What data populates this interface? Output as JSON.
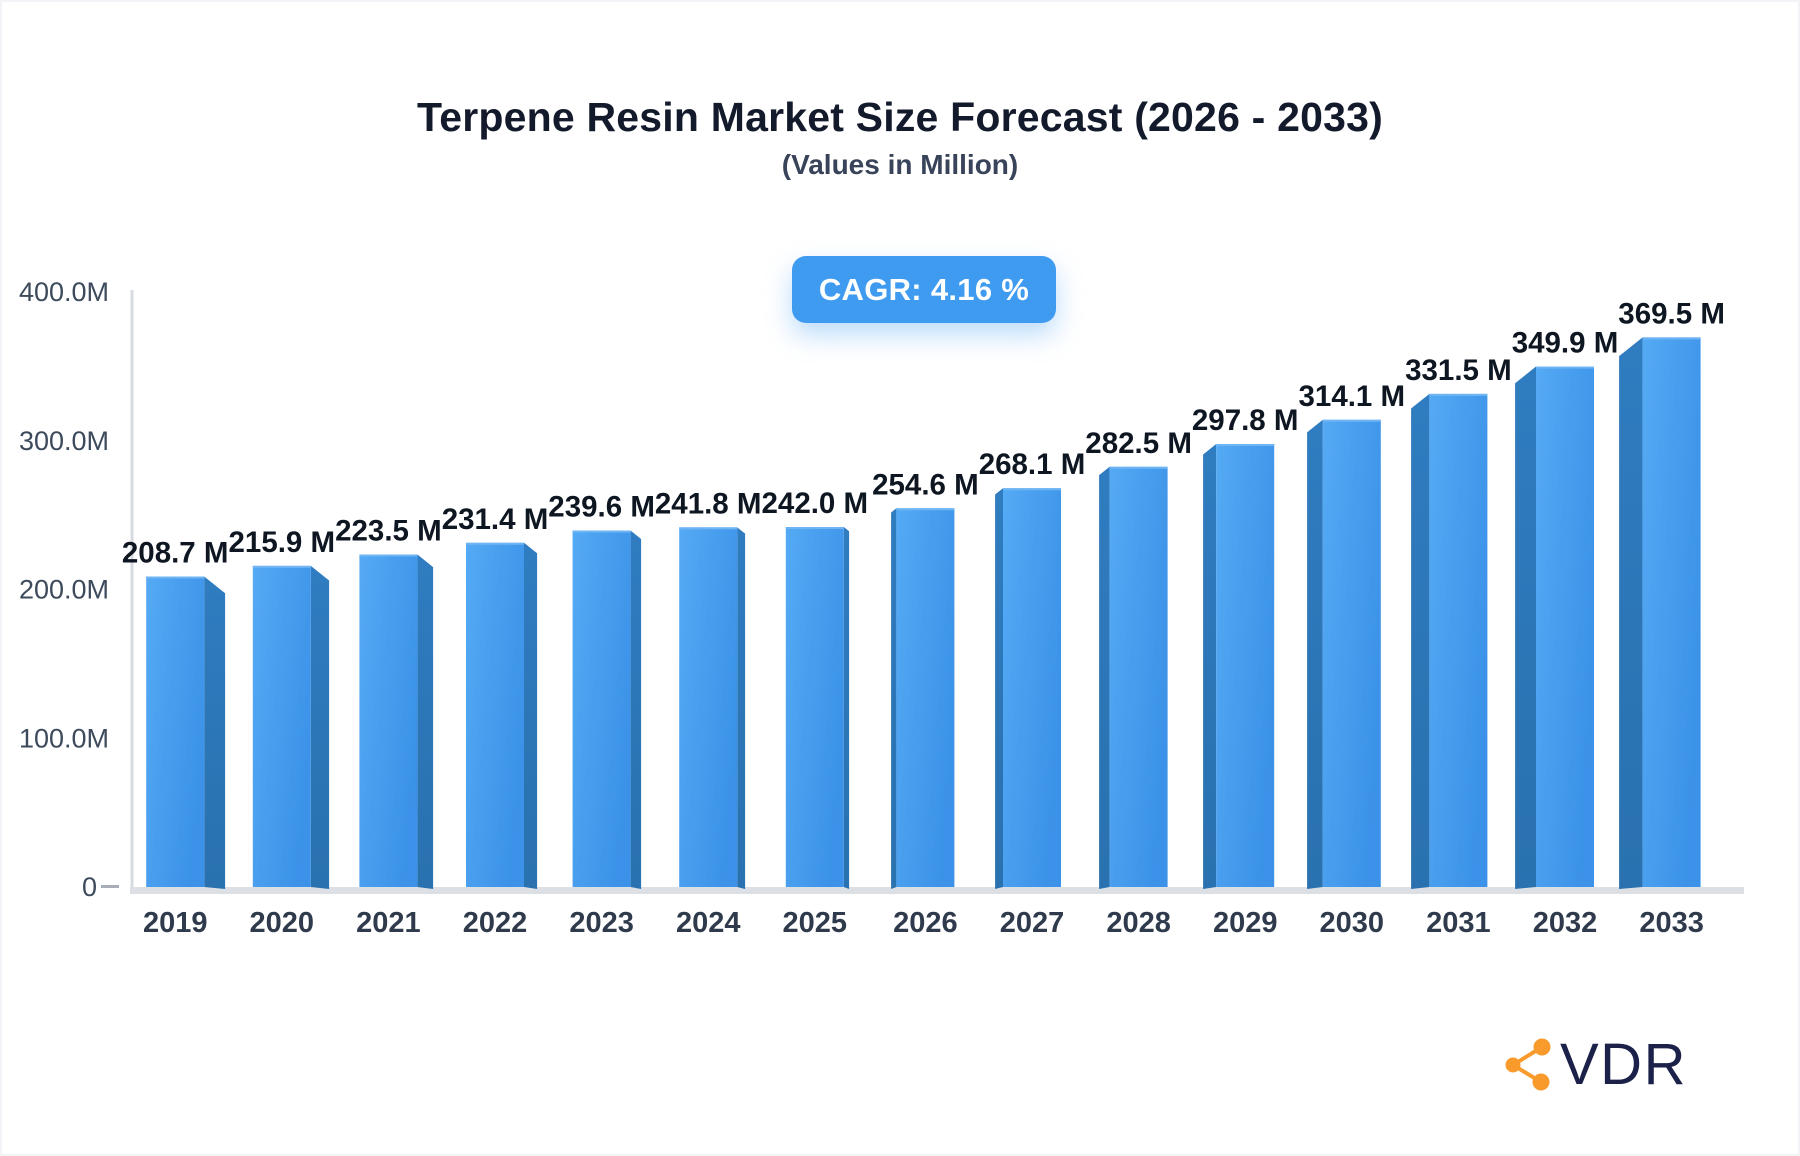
{
  "header": {
    "title": "Terpene Resin Market Size Forecast (2026 - 2033)",
    "subtitle": "(Values in Million)",
    "cagr_label": "CAGR: 4.16 %"
  },
  "chart_data": {
    "type": "bar",
    "title": "Terpene Resin Market Size Forecast (2026 - 2033)",
    "subtitle": "(Values in Million)",
    "cagr": "4.16 %",
    "unit": "Million",
    "categories": [
      "2019",
      "2020",
      "2021",
      "2022",
      "2023",
      "2024",
      "2025",
      "2026",
      "2027",
      "2028",
      "2029",
      "2030",
      "2031",
      "2032",
      "2033"
    ],
    "values": [
      208.7,
      215.9,
      223.5,
      231.4,
      239.6,
      241.8,
      242.0,
      254.6,
      268.1,
      282.5,
      297.8,
      314.1,
      331.5,
      349.9,
      369.5
    ],
    "value_labels": [
      "208.7 M",
      "215.9 M",
      "223.5 M",
      "231.4 M",
      "239.6 M",
      "241.8 M",
      "242.0 M",
      "254.6 M",
      "268.1 M",
      "282.5 M",
      "297.8 M",
      "314.1 M",
      "331.5 M",
      "349.9 M",
      "369.5 M"
    ],
    "xlabel": "",
    "ylabel": "",
    "ylim": [
      0,
      400
    ],
    "y_ticks": [
      {
        "label": "400.0M",
        "value": 400
      },
      {
        "label": "300.0M",
        "value": 300
      },
      {
        "label": "200.0M",
        "value": 200
      },
      {
        "label": "100.0M",
        "value": 100
      },
      {
        "label": "0",
        "value": 0
      }
    ],
    "grid": false,
    "legend": "none",
    "colors": {
      "bar_front_light": "#55aaf4",
      "bar_front_dark": "#3b92e8",
      "bar_side": "#2c76b8",
      "axis_line": "#d7dbe0",
      "baseline": "#dce0e5",
      "tick": "#a8aeb8",
      "y_label": "#3d4a5c",
      "x_label": "#2f3b4c",
      "value_label": "#0e1622",
      "badge_bg": "#3e9bf0"
    }
  },
  "footer": {
    "logo_text": "VDR",
    "logo_icon_color": "#f89b2c"
  }
}
